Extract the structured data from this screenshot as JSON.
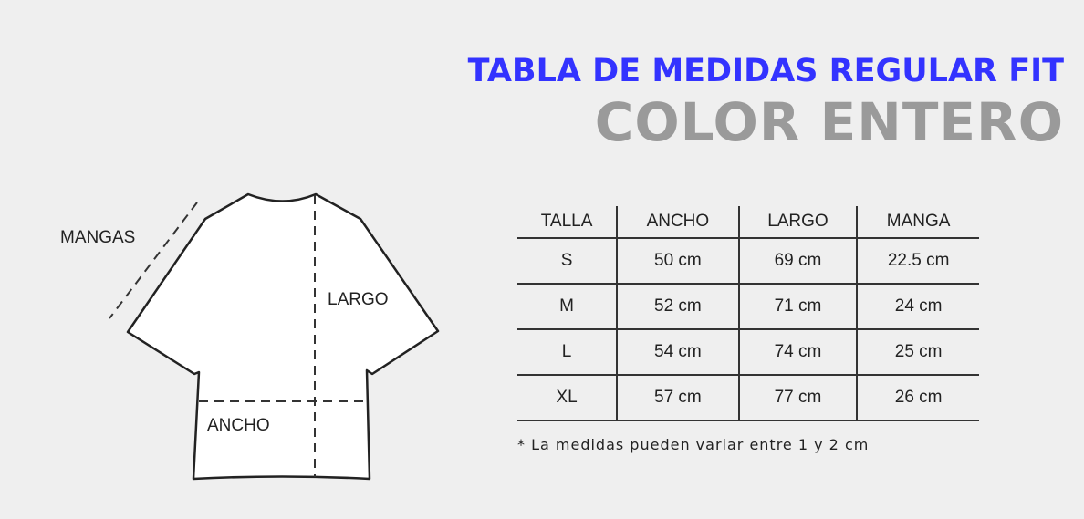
{
  "header": {
    "title": "TABLA DE MEDIDAS REGULAR FIT",
    "subtitle": "COLOR ENTERO"
  },
  "colors": {
    "title": "#3333ff",
    "subtitle": "#9a9a9a",
    "background": "#efefef"
  },
  "diagram": {
    "mangas": "MANGAS",
    "largo": "LARGO",
    "ancho": "ANCHO"
  },
  "table": {
    "headers": [
      "TALLA",
      "ANCHO",
      "LARGO",
      "MANGA"
    ],
    "rows": [
      [
        "S",
        "50 cm",
        "69 cm",
        "22.5 cm"
      ],
      [
        "M",
        "52 cm",
        "71 cm",
        "24 cm"
      ],
      [
        "L",
        "54 cm",
        "74 cm",
        "25 cm"
      ],
      [
        "XL",
        "57 cm",
        "77 cm",
        "26 cm"
      ]
    ]
  },
  "note": "* La medidas pueden variar entre 1 y 2 cm"
}
